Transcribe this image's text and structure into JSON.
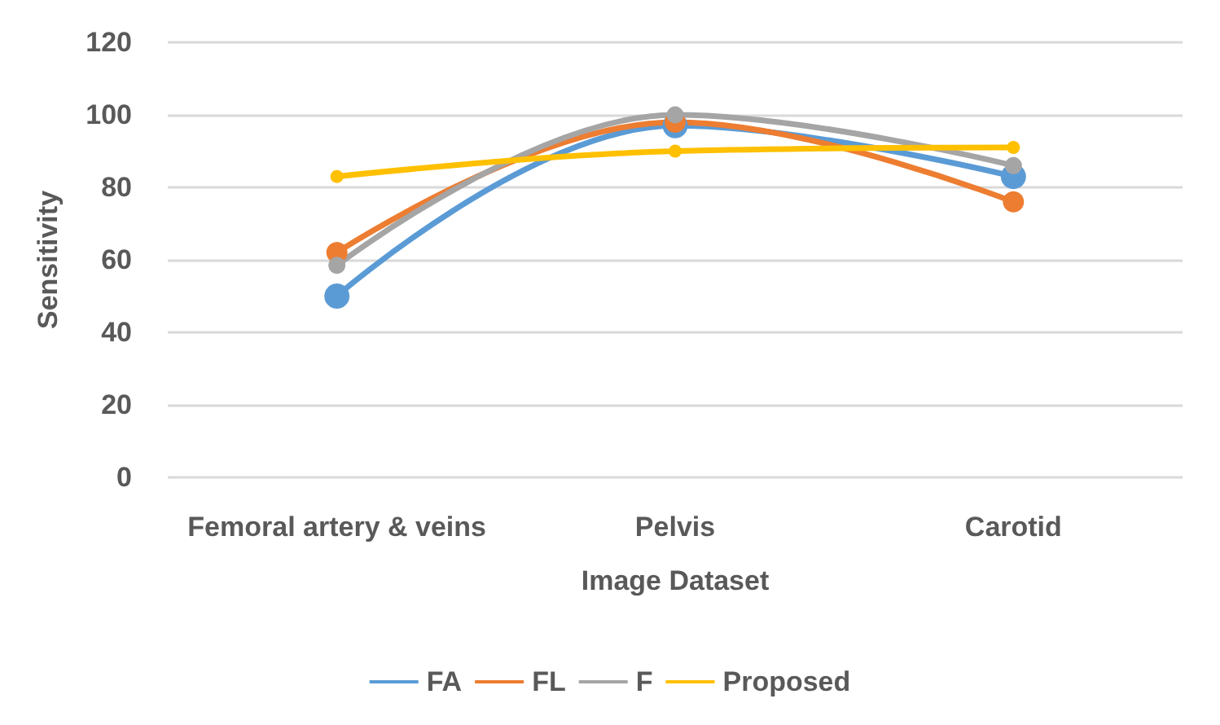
{
  "chart_data": {
    "type": "line",
    "xlabel": "Image Dataset",
    "ylabel": "Sensitivity",
    "categories": [
      "Femoral artery & veins",
      "Pelvis",
      "Carotid"
    ],
    "series": [
      {
        "name": "FA",
        "color": "#5b9bd5",
        "values": [
          50,
          97,
          83
        ]
      },
      {
        "name": "FL",
        "color": "#ed7d31",
        "values": [
          62,
          98,
          76
        ]
      },
      {
        "name": "F",
        "color": "#a5a5a5",
        "values": [
          58.5,
          100,
          86
        ]
      },
      {
        "name": "Proposed",
        "color": "#ffc000",
        "values": [
          83,
          90,
          91
        ]
      }
    ],
    "ylim": [
      0,
      120
    ],
    "yticks": [
      0,
      20,
      40,
      60,
      80,
      100,
      120
    ],
    "grid": "y",
    "legend": "bottom",
    "marker": "circle"
  }
}
